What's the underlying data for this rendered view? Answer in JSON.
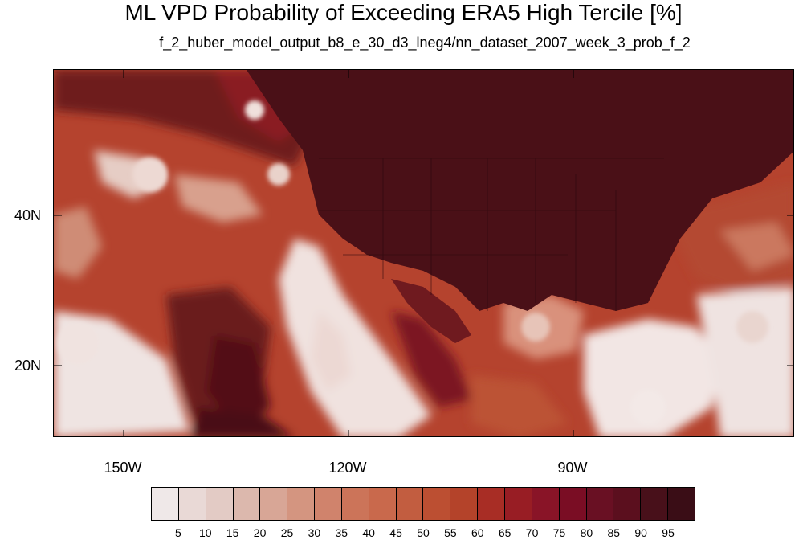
{
  "title": "ML VPD Probability of Exceeding ERA5 High Tercile [%]",
  "subtitle": "f_2_huber_model_output_b8_e_30_d3_lneg4/nn_dataset_2007_week_3_prob_f_2",
  "lat_labels": [
    "40N",
    "20N"
  ],
  "lon_labels": [
    "150W",
    "120W",
    "90W"
  ],
  "colorbar": {
    "labels": [
      "5",
      "10",
      "15",
      "20",
      "25",
      "30",
      "35",
      "40",
      "45",
      "50",
      "55",
      "60",
      "65",
      "70",
      "75",
      "80",
      "85",
      "90",
      "95"
    ],
    "colors": [
      "#efe8e8",
      "#e9d9d6",
      "#e3cbc5",
      "#dcb8ad",
      "#d8a696",
      "#d49580",
      "#d0836c",
      "#cc7459",
      "#c9694c",
      "#c25d40",
      "#bc4f32",
      "#b4432a",
      "#a82d25",
      "#981d24",
      "#891427",
      "#7a0d24",
      "#691023",
      "#5b0f1e",
      "#48101a",
      "#3a0d16"
    ]
  }
}
